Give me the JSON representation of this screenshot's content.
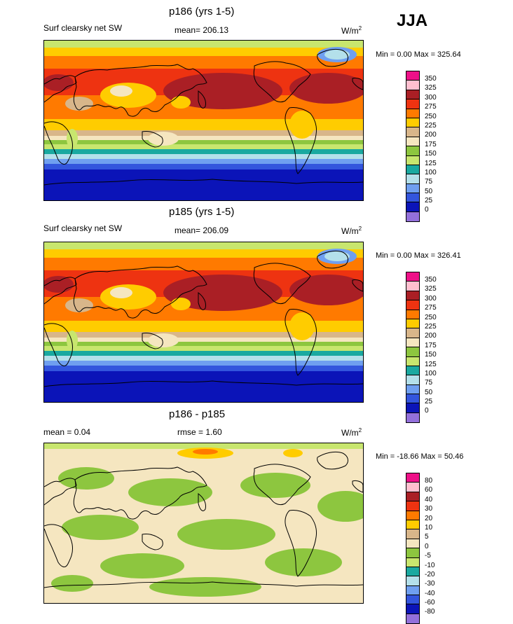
{
  "season": "JJA",
  "panels": [
    {
      "title": "p186 (yrs 1-5)",
      "left_label": "Surf clearsky net SW",
      "center_label": "mean= 206.13",
      "units": "W/m",
      "units_sup": "2",
      "minmax": "Min =   0.00 Max = 325.64",
      "levels": [
        "350",
        "325",
        "300",
        "275",
        "250",
        "225",
        "200",
        "175",
        "150",
        "125",
        "100",
        "75",
        "50",
        "25",
        "0"
      ],
      "colors": [
        "#ee1188",
        "#ffbfcf",
        "#aa1f25",
        "#ee3311",
        "#ff7a00",
        "#ffcc00",
        "#d8b68a",
        "#f5e6c0",
        "#8dc63f",
        "#c8e66e",
        "#1aa9a0",
        "#b4e0ea",
        "#6f9ff0",
        "#3355dd",
        "#0b14b8",
        "#9370db"
      ]
    },
    {
      "title": "p185 (yrs 1-5)",
      "left_label": "Surf clearsky net SW",
      "center_label": "mean= 206.09",
      "units": "W/m",
      "units_sup": "2",
      "minmax": "Min =   0.00 Max = 326.41",
      "levels": [
        "350",
        "325",
        "300",
        "275",
        "250",
        "225",
        "200",
        "175",
        "150",
        "125",
        "100",
        "75",
        "50",
        "25",
        "0"
      ],
      "colors": [
        "#ee1188",
        "#ffbfcf",
        "#aa1f25",
        "#ee3311",
        "#ff7a00",
        "#ffcc00",
        "#d8b68a",
        "#f5e6c0",
        "#8dc63f",
        "#c8e66e",
        "#1aa9a0",
        "#b4e0ea",
        "#6f9ff0",
        "#3355dd",
        "#0b14b8",
        "#9370db"
      ]
    },
    {
      "title": "p186 - p185",
      "left_label": "mean =   0.04",
      "center_label": "rmse =   1.60",
      "units": "W/m",
      "units_sup": "2",
      "minmax": "Min = -18.66 Max =  50.46",
      "levels": [
        "80",
        "60",
        "40",
        "30",
        "20",
        "10",
        "5",
        "0",
        "-5",
        "-10",
        "-20",
        "-30",
        "-40",
        "-60",
        "-80"
      ],
      "colors": [
        "#ee1188",
        "#ffbfcf",
        "#aa1f25",
        "#ee3311",
        "#ff7a00",
        "#ffcc00",
        "#d8b68a",
        "#f5e6c0",
        "#8dc63f",
        "#c8e66e",
        "#1aa9a0",
        "#b4e0ea",
        "#6f9ff0",
        "#3355dd",
        "#0b14b8",
        "#9370db"
      ]
    }
  ]
}
